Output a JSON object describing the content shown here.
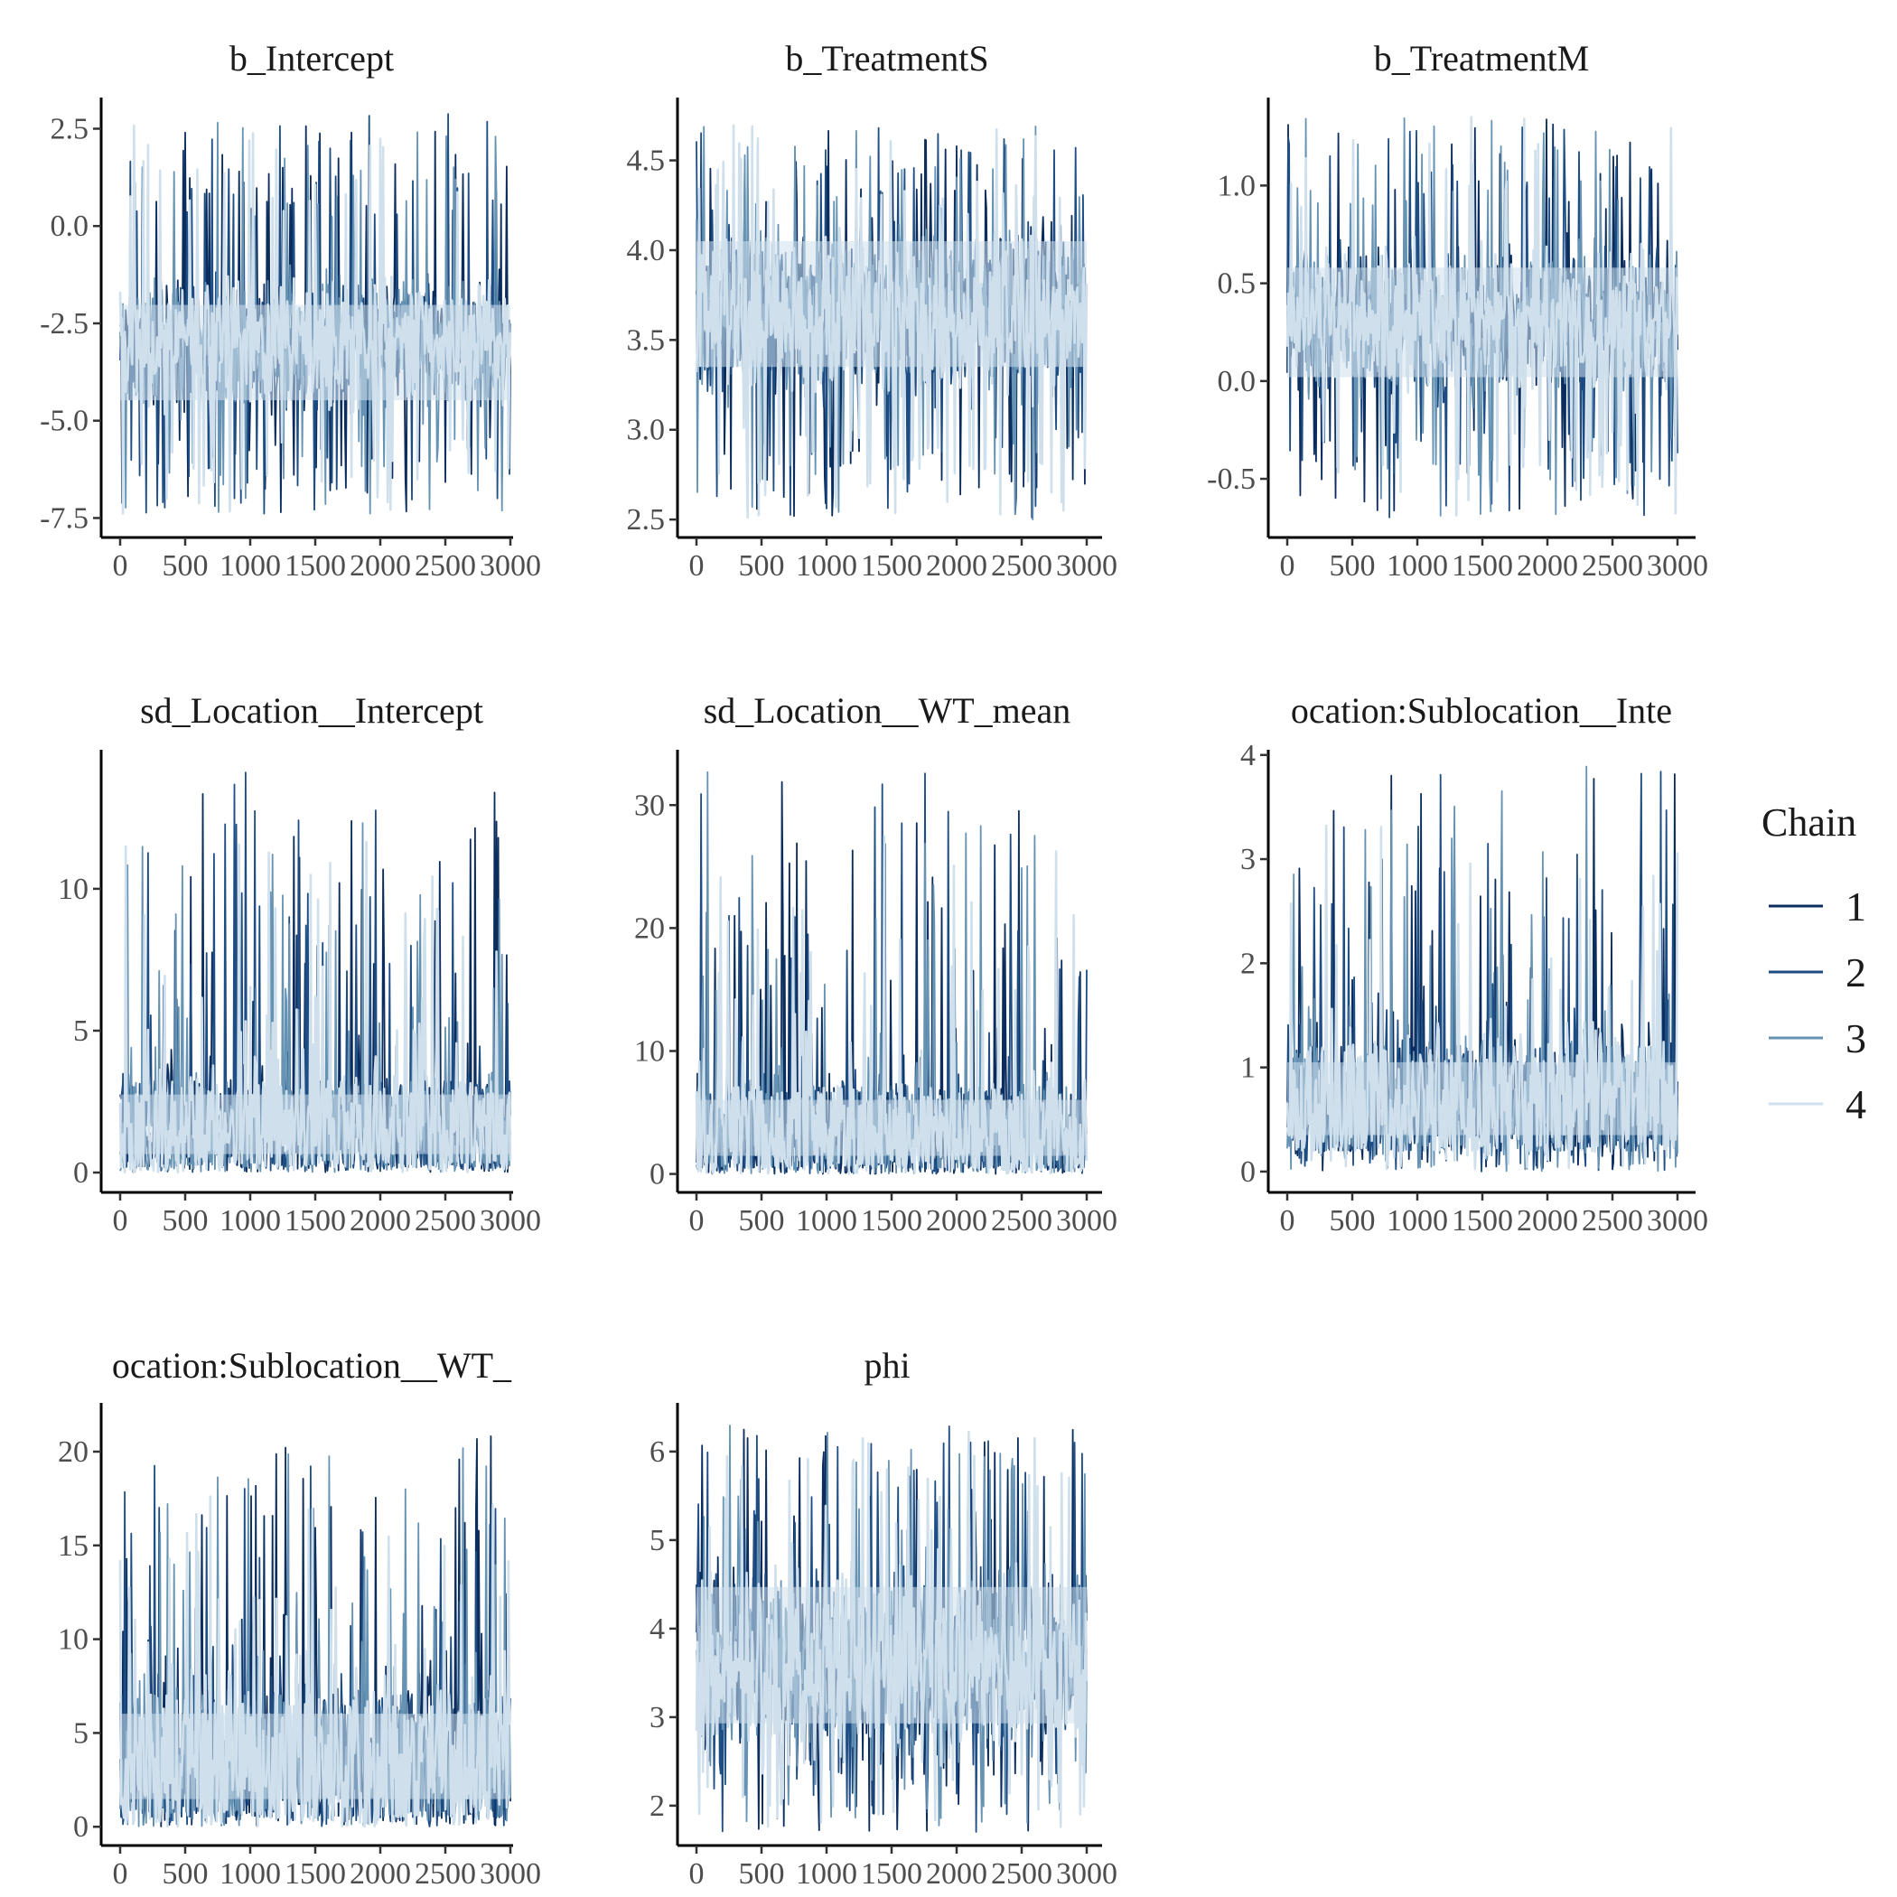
{
  "chart_data": {
    "type": "line",
    "chart_kind": "MCMC trace plots (faceted)",
    "x_tick_labels": [
      "0",
      "500",
      "1000",
      "1500",
      "2000",
      "2500",
      "3000"
    ],
    "x_range": [
      0,
      3000
    ],
    "grid": false,
    "legend": {
      "title": "Chain",
      "placement": "right",
      "entries": [
        {
          "label": "1",
          "color": "#0b2d5e"
        },
        {
          "label": "2",
          "color": "#1e4d84"
        },
        {
          "label": "3",
          "color": "#6693b3"
        },
        {
          "label": "4",
          "color": "#cfe0ec"
        }
      ]
    },
    "panels": [
      {
        "title": "b_Intercept",
        "ylim": [
          -8.0,
          3.3
        ],
        "y_ticks": [
          -7.5,
          -5.0,
          -2.5,
          0.0,
          2.5
        ],
        "y_tick_labels": [
          "-7.5",
          "-5.0",
          "-2.5",
          "0.0",
          "2.5"
        ],
        "band": [
          -5.0,
          -1.5
        ],
        "center": -3.0,
        "min": -7.4,
        "max": 2.9
      },
      {
        "title": "b_TreatmentS",
        "ylim": [
          2.4,
          4.85
        ],
        "y_ticks": [
          2.5,
          3.0,
          3.5,
          4.0,
          4.5
        ],
        "y_tick_labels": [
          "2.5",
          "3.0",
          "3.5",
          "4.0",
          "4.5"
        ],
        "band": [
          3.2,
          4.2
        ],
        "center": 3.65,
        "min": 2.5,
        "max": 4.7
      },
      {
        "title": "b_TreatmentM",
        "ylim": [
          -0.8,
          1.45
        ],
        "y_ticks": [
          -0.5,
          0.0,
          0.5,
          1.0
        ],
        "y_tick_labels": [
          "-0.5",
          "0.0",
          "0.5",
          "1.0"
        ],
        "band": [
          -0.1,
          0.7
        ],
        "center": 0.3,
        "min": -0.7,
        "max": 1.35
      },
      {
        "title": "sd_Location__Intercept",
        "ylim": [
          -0.7,
          14.9
        ],
        "y_ticks": [
          0,
          5,
          10
        ],
        "y_tick_labels": [
          "0",
          "5",
          "10"
        ],
        "band": [
          0.2,
          3.2
        ],
        "center": 1.6,
        "min": 0.0,
        "max": 14.2
      },
      {
        "title": "sd_Location__WT_mean",
        "ylim": [
          -1.5,
          34.5
        ],
        "y_ticks": [
          0,
          10,
          20,
          30
        ],
        "y_tick_labels": [
          "0",
          "10",
          "20",
          "30"
        ],
        "band": [
          0.5,
          7.0
        ],
        "center": 3.0,
        "min": 0.0,
        "max": 33.0
      },
      {
        "title": "ocation:Sublocation__Inte",
        "ylim": [
          -0.2,
          4.05
        ],
        "y_ticks": [
          0,
          1,
          2,
          3,
          4
        ],
        "y_tick_labels": [
          "0",
          "1",
          "2",
          "3",
          "4"
        ],
        "band": [
          0.2,
          1.2
        ],
        "center": 0.65,
        "min": 0.0,
        "max": 3.9
      },
      {
        "title": "ocation:Sublocation__WT_",
        "ylim": [
          -1.0,
          22.6
        ],
        "y_ticks": [
          0,
          5,
          10,
          15,
          20
        ],
        "y_tick_labels": [
          "0",
          "5",
          "10",
          "15",
          "20"
        ],
        "band": [
          0.5,
          7.0
        ],
        "center": 3.5,
        "min": 0.0,
        "max": 21.2
      },
      {
        "title": "phi",
        "ylim": [
          1.55,
          6.55
        ],
        "y_ticks": [
          2,
          3,
          4,
          5,
          6
        ],
        "y_tick_labels": [
          "2",
          "3",
          "4",
          "5",
          "6"
        ],
        "band": [
          2.6,
          4.8
        ],
        "center": 3.6,
        "min": 1.7,
        "max": 6.3
      }
    ]
  }
}
